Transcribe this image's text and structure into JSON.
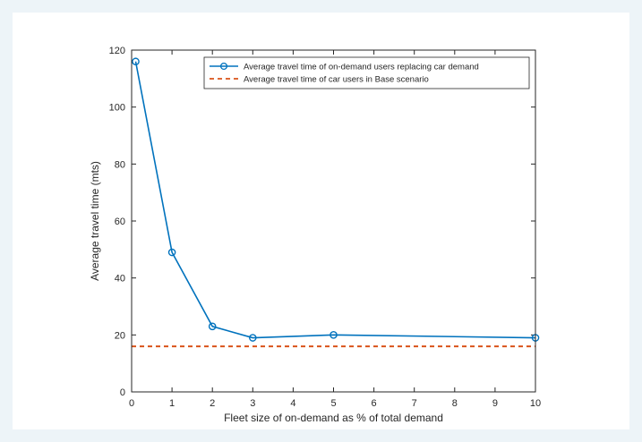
{
  "chart_data": {
    "type": "line",
    "title": "",
    "xlabel": "Fleet size of on-demand as % of total demand",
    "ylabel": "Average travel time (mts)",
    "xlim": [
      0,
      10
    ],
    "ylim": [
      0,
      120
    ],
    "xticks": [
      0,
      1,
      2,
      3,
      4,
      5,
      6,
      7,
      8,
      9,
      10
    ],
    "yticks": [
      0,
      20,
      40,
      60,
      80,
      100,
      120
    ],
    "grid": false,
    "legend_position": "top-right",
    "series": [
      {
        "name": "Average travel time of on-demand users replacing car demand",
        "color": "#0072bd",
        "style": "solid-with-circle-markers",
        "x": [
          0.1,
          1,
          2,
          3,
          5,
          10
        ],
        "y": [
          116,
          49,
          23,
          19,
          20,
          19
        ]
      },
      {
        "name": "Average travel time of car users in Base scenario",
        "color": "#d95319",
        "style": "dashed",
        "x": [
          0,
          10
        ],
        "y": [
          16,
          16
        ]
      }
    ]
  }
}
